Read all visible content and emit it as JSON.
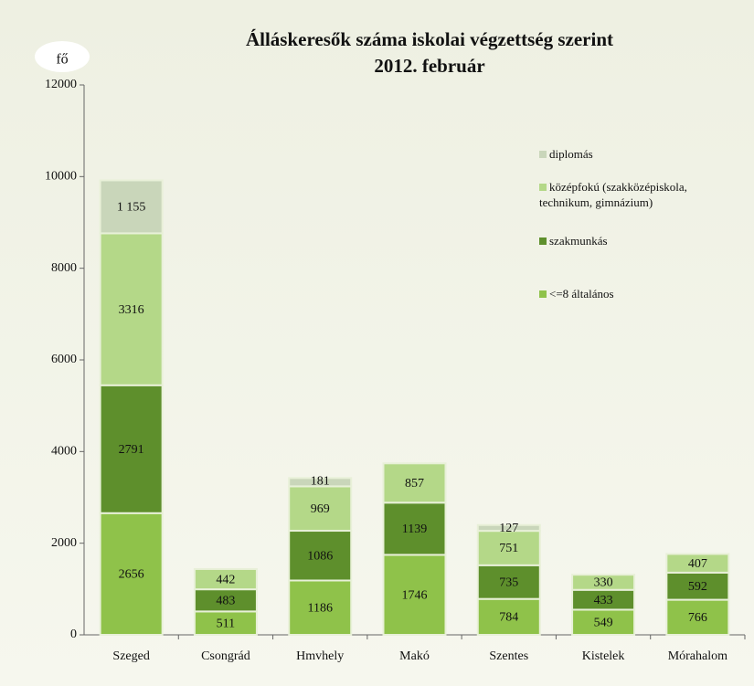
{
  "chart_data": {
    "type": "stacked_bar",
    "title": "Álláskeresők száma iskolai végzettség szerint",
    "subtitle": "2012. február",
    "y_label": "fő",
    "categories": [
      "Szeged",
      "Csongrád",
      "Hmvhely",
      "Makó",
      "Szentes",
      "Kistelek",
      "Mórahalom"
    ],
    "series": [
      {
        "name": "<=8 általános",
        "color": "#8fc24a",
        "values": [
          2656,
          511,
          1186,
          1746,
          784,
          549,
          766
        ]
      },
      {
        "name": "szakmunkás",
        "color": "#5e8f2c",
        "values": [
          2791,
          483,
          1086,
          1139,
          735,
          433,
          592
        ]
      },
      {
        "name": "középfokú (szakközépiskola, technikum, gimnázium)",
        "color": "#b4d888",
        "values": [
          3316,
          442,
          969,
          857,
          751,
          330,
          407
        ]
      },
      {
        "name": "diplomás",
        "color": "#c9d6ba",
        "values": [
          1155,
          null,
          181,
          null,
          127,
          null,
          null
        ],
        "value_labels": [
          "1 155",
          null,
          "181",
          null,
          "127",
          null,
          null
        ]
      }
    ],
    "ylim": [
      0,
      12000
    ],
    "yticks": [
      0,
      2000,
      4000,
      6000,
      8000,
      10000,
      12000
    ],
    "grid": false,
    "legend": "upper right"
  }
}
